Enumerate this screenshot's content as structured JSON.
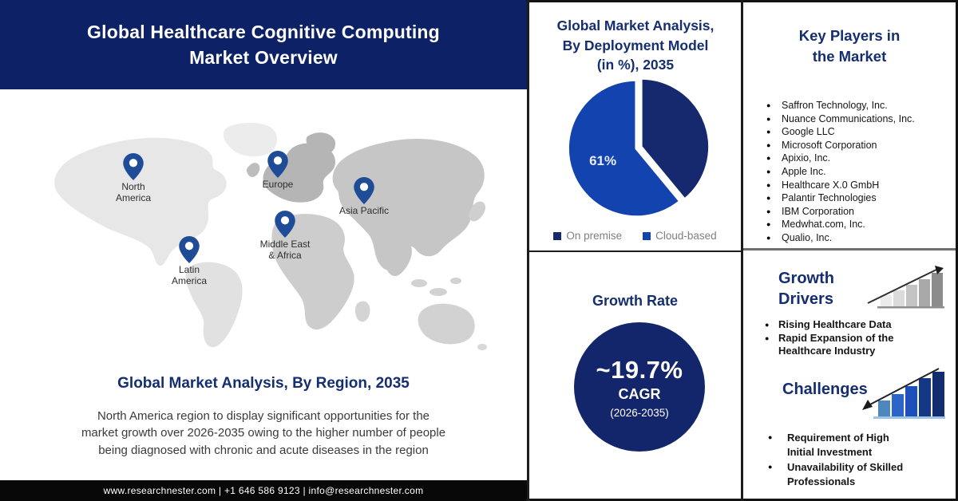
{
  "theme": {
    "navy_band": "#0c2166",
    "heading_navy": "#142e70",
    "pie_dark": "#16296e",
    "pie_bright": "#1243ae",
    "footer_black": "#080808"
  },
  "header": {
    "title": "Global  Healthcare Cognitive Computing\nMarket Overview"
  },
  "map": {
    "regions": [
      {
        "label": "North\nAmerica"
      },
      {
        "label": "Europe"
      },
      {
        "label": "Asia Pacific"
      },
      {
        "label": "Middle East\n& Africa"
      },
      {
        "label": "Latin\nAmerica"
      }
    ]
  },
  "region_section": {
    "heading": "Global Market Analysis, By Region, 2035",
    "body": "North America region to display significant opportunities for the\nmarket growth over 2026-2035 owing to the higher number of people\nbeing diagnosed with chronic and acute diseases in the region"
  },
  "footer": {
    "text": "www.researchnester.com | +1 646 586 9123 | info@researchnester.com"
  },
  "deployment": {
    "title": "Global Market Analysis,\nBy Deployment Model\n(in %), 2035",
    "legend": [
      "On premise",
      "Cloud-based"
    ]
  },
  "growth_rate": {
    "title": "Growth Rate",
    "value": "~19.7%",
    "metric": "CAGR",
    "period": "(2026-2035)"
  },
  "key_players": {
    "title": "Key Players in\nthe Market",
    "items": [
      "Saffron Technology, Inc.",
      "Nuance Communications, Inc.",
      "Google LLC",
      "Microsoft Corporation",
      "Apixio, Inc.",
      "Apple Inc.",
      "Healthcare X.0 GmbH",
      "Palantir Technologies",
      "IBM Corporation",
      "Medwhat.com, Inc.",
      "Qualio, Inc."
    ]
  },
  "growth_drivers": {
    "title": "Growth\nDrivers",
    "items": [
      "Rising Healthcare Data",
      "Rapid Expansion of the Healthcare Industry"
    ]
  },
  "challenges": {
    "title": "Challenges",
    "items": [
      "Requirement of High Initial Investment",
      "Unavailability of Skilled Professionals"
    ]
  },
  "chart_data": {
    "type": "pie",
    "title": "Global Market Analysis, By Deployment Model (in %), 2035",
    "labels": [
      "On premise",
      "Cloud-based"
    ],
    "values": [
      39,
      61
    ],
    "colors": [
      "#16296e",
      "#1243ae"
    ],
    "data_labels": [
      "",
      "61%"
    ],
    "legend_position": "bottom",
    "start_angle_deg_from_top": 0,
    "direction": "clockwise"
  }
}
